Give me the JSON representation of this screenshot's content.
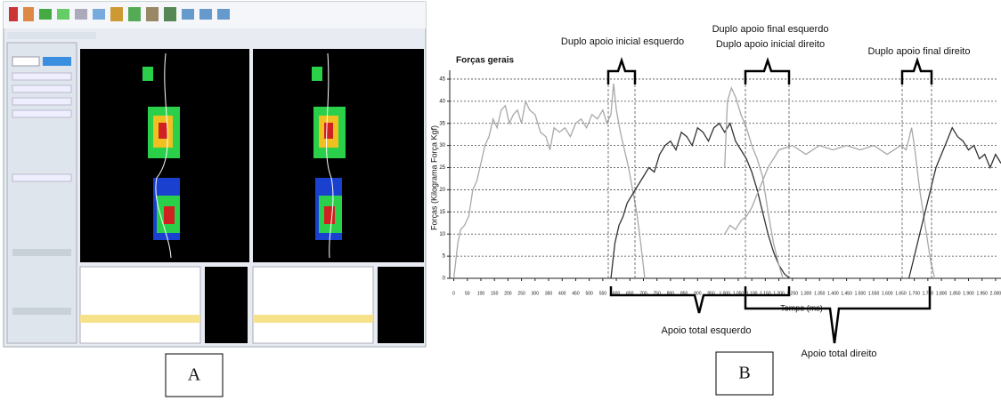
{
  "panels": [
    "A",
    "B"
  ],
  "chart_data": {
    "type": "line",
    "title": "Forças gerais",
    "ylabel": "Forças (Kilograma Força Kgf)",
    "xlabel": "Tempo (ms)",
    "annotations": [
      "Duplo apoio inicial esquerdo",
      "Duplo apoio final esquerdo",
      "Duplo apoio inicial direito",
      "Duplo apoio final direito",
      "Apoio total esquerdo",
      "Apoio total direito"
    ],
    "xlim": [
      -15,
      2020
    ],
    "ylim": [
      0,
      47
    ],
    "grid": true,
    "yticks": [
      0,
      5,
      10,
      15,
      20,
      25,
      30,
      35,
      40,
      45
    ],
    "xticks": [
      0,
      50,
      100,
      150,
      200,
      250,
      300,
      350,
      400,
      450,
      500,
      550,
      600,
      650,
      700,
      750,
      800,
      850,
      900,
      950,
      {
        "value": 1000,
        "label": "1.000"
      },
      {
        "value": 1050,
        "label": "1.050"
      },
      {
        "value": 1100,
        "label": "1.100"
      },
      {
        "value": 1150,
        "label": "1.150"
      },
      {
        "value": 1200,
        "label": "1.200"
      },
      {
        "value": 1250,
        "label": "1.250"
      },
      {
        "value": 1300,
        "label": "1.300"
      },
      {
        "value": 1350,
        "label": "1.350"
      },
      {
        "value": 1400,
        "label": "1.400"
      },
      {
        "value": 1450,
        "label": "1.450"
      },
      {
        "value": 1500,
        "label": "1.500"
      },
      {
        "value": 1550,
        "label": "1.550"
      },
      {
        "value": 1600,
        "label": "1.600"
      },
      {
        "value": 1650,
        "label": "1.650"
      },
      {
        "value": 1700,
        "label": "1.700"
      },
      {
        "value": 1750,
        "label": "1.750"
      },
      {
        "value": 1800,
        "label": "1.800"
      },
      {
        "value": 1850,
        "label": "1.850"
      },
      {
        "value": 1900,
        "label": "1.900"
      },
      {
        "value": 1950,
        "label": "1.950"
      },
      {
        "value": 2000,
        "label": "2.000"
      }
    ],
    "series": [
      {
        "color": "#a8a8a8",
        "x": [
          0,
          15,
          25,
          40,
          55,
          70,
          85,
          100,
          115,
          130,
          145,
          160,
          175,
          190,
          205,
          220,
          235,
          250,
          265,
          280,
          300,
          320,
          340,
          355,
          370,
          390,
          410,
          430,
          450,
          470,
          490,
          510,
          530,
          550,
          565,
          580,
          590,
          600,
          615,
          630,
          645,
          660,
          675,
          690,
          705
        ],
        "values": [
          0,
          8,
          11,
          12,
          14,
          20,
          22,
          26,
          30,
          32,
          36,
          34,
          38,
          39,
          35,
          37,
          38,
          35,
          40,
          38,
          37,
          33,
          32,
          29,
          34,
          33,
          34,
          32,
          35,
          36,
          34,
          37,
          36,
          38,
          35,
          37,
          44,
          38,
          33,
          29,
          25,
          20,
          15,
          8,
          0
        ]
      },
      {
        "color": "#333333",
        "x": [
          580,
          595,
          610,
          625,
          640,
          660,
          680,
          700,
          720,
          740,
          760,
          780,
          800,
          820,
          840,
          860,
          880,
          900,
          920,
          940,
          960,
          980,
          1000,
          1020,
          1040,
          1060,
          1080,
          1100,
          1120,
          1140,
          1160,
          1180,
          1200,
          1220,
          1240
        ],
        "values": [
          0,
          8,
          12,
          14,
          17,
          19,
          21,
          23,
          25,
          24,
          28,
          30,
          31,
          29,
          33,
          32,
          30,
          34,
          33,
          31,
          34,
          35,
          33,
          35,
          31,
          29,
          27,
          24,
          20,
          15,
          10,
          6,
          3,
          1,
          0
        ]
      },
      {
        "color": "#a8a8a8",
        "x": [
          1000,
          1010,
          1025,
          1040,
          1060,
          1080,
          1100,
          1120,
          1140,
          1160,
          1180,
          1200,
          1215
        ],
        "values": [
          25,
          40,
          43,
          41,
          37,
          34,
          30,
          27,
          23,
          15,
          8,
          3,
          0
        ]
      },
      {
        "color": "#a8a8a8",
        "x": [
          1000,
          1020,
          1040,
          1060,
          1080,
          1100,
          1120,
          1140,
          1160,
          1180,
          1200,
          1250,
          1300,
          1350,
          1400,
          1450,
          1500,
          1550,
          1600,
          1650,
          1670,
          1690,
          1700,
          1720,
          1740,
          1760,
          1775
        ],
        "values": [
          10,
          12,
          11,
          13,
          14,
          16,
          19,
          22,
          25,
          27,
          29,
          30,
          28,
          30,
          29,
          30,
          29,
          30,
          28,
          30,
          29,
          34,
          30,
          20,
          12,
          4,
          0
        ]
      },
      {
        "color": "#333333",
        "x": [
          1680,
          1700,
          1720,
          1740,
          1760,
          1780,
          1800,
          1820,
          1840,
          1860,
          1880,
          1900,
          1920,
          1940,
          1960,
          1980,
          2000,
          2020
        ],
        "values": [
          0,
          5,
          10,
          15,
          20,
          25,
          28,
          31,
          34,
          32,
          31,
          29,
          30,
          27,
          28,
          25,
          28,
          26
        ]
      }
    ]
  }
}
